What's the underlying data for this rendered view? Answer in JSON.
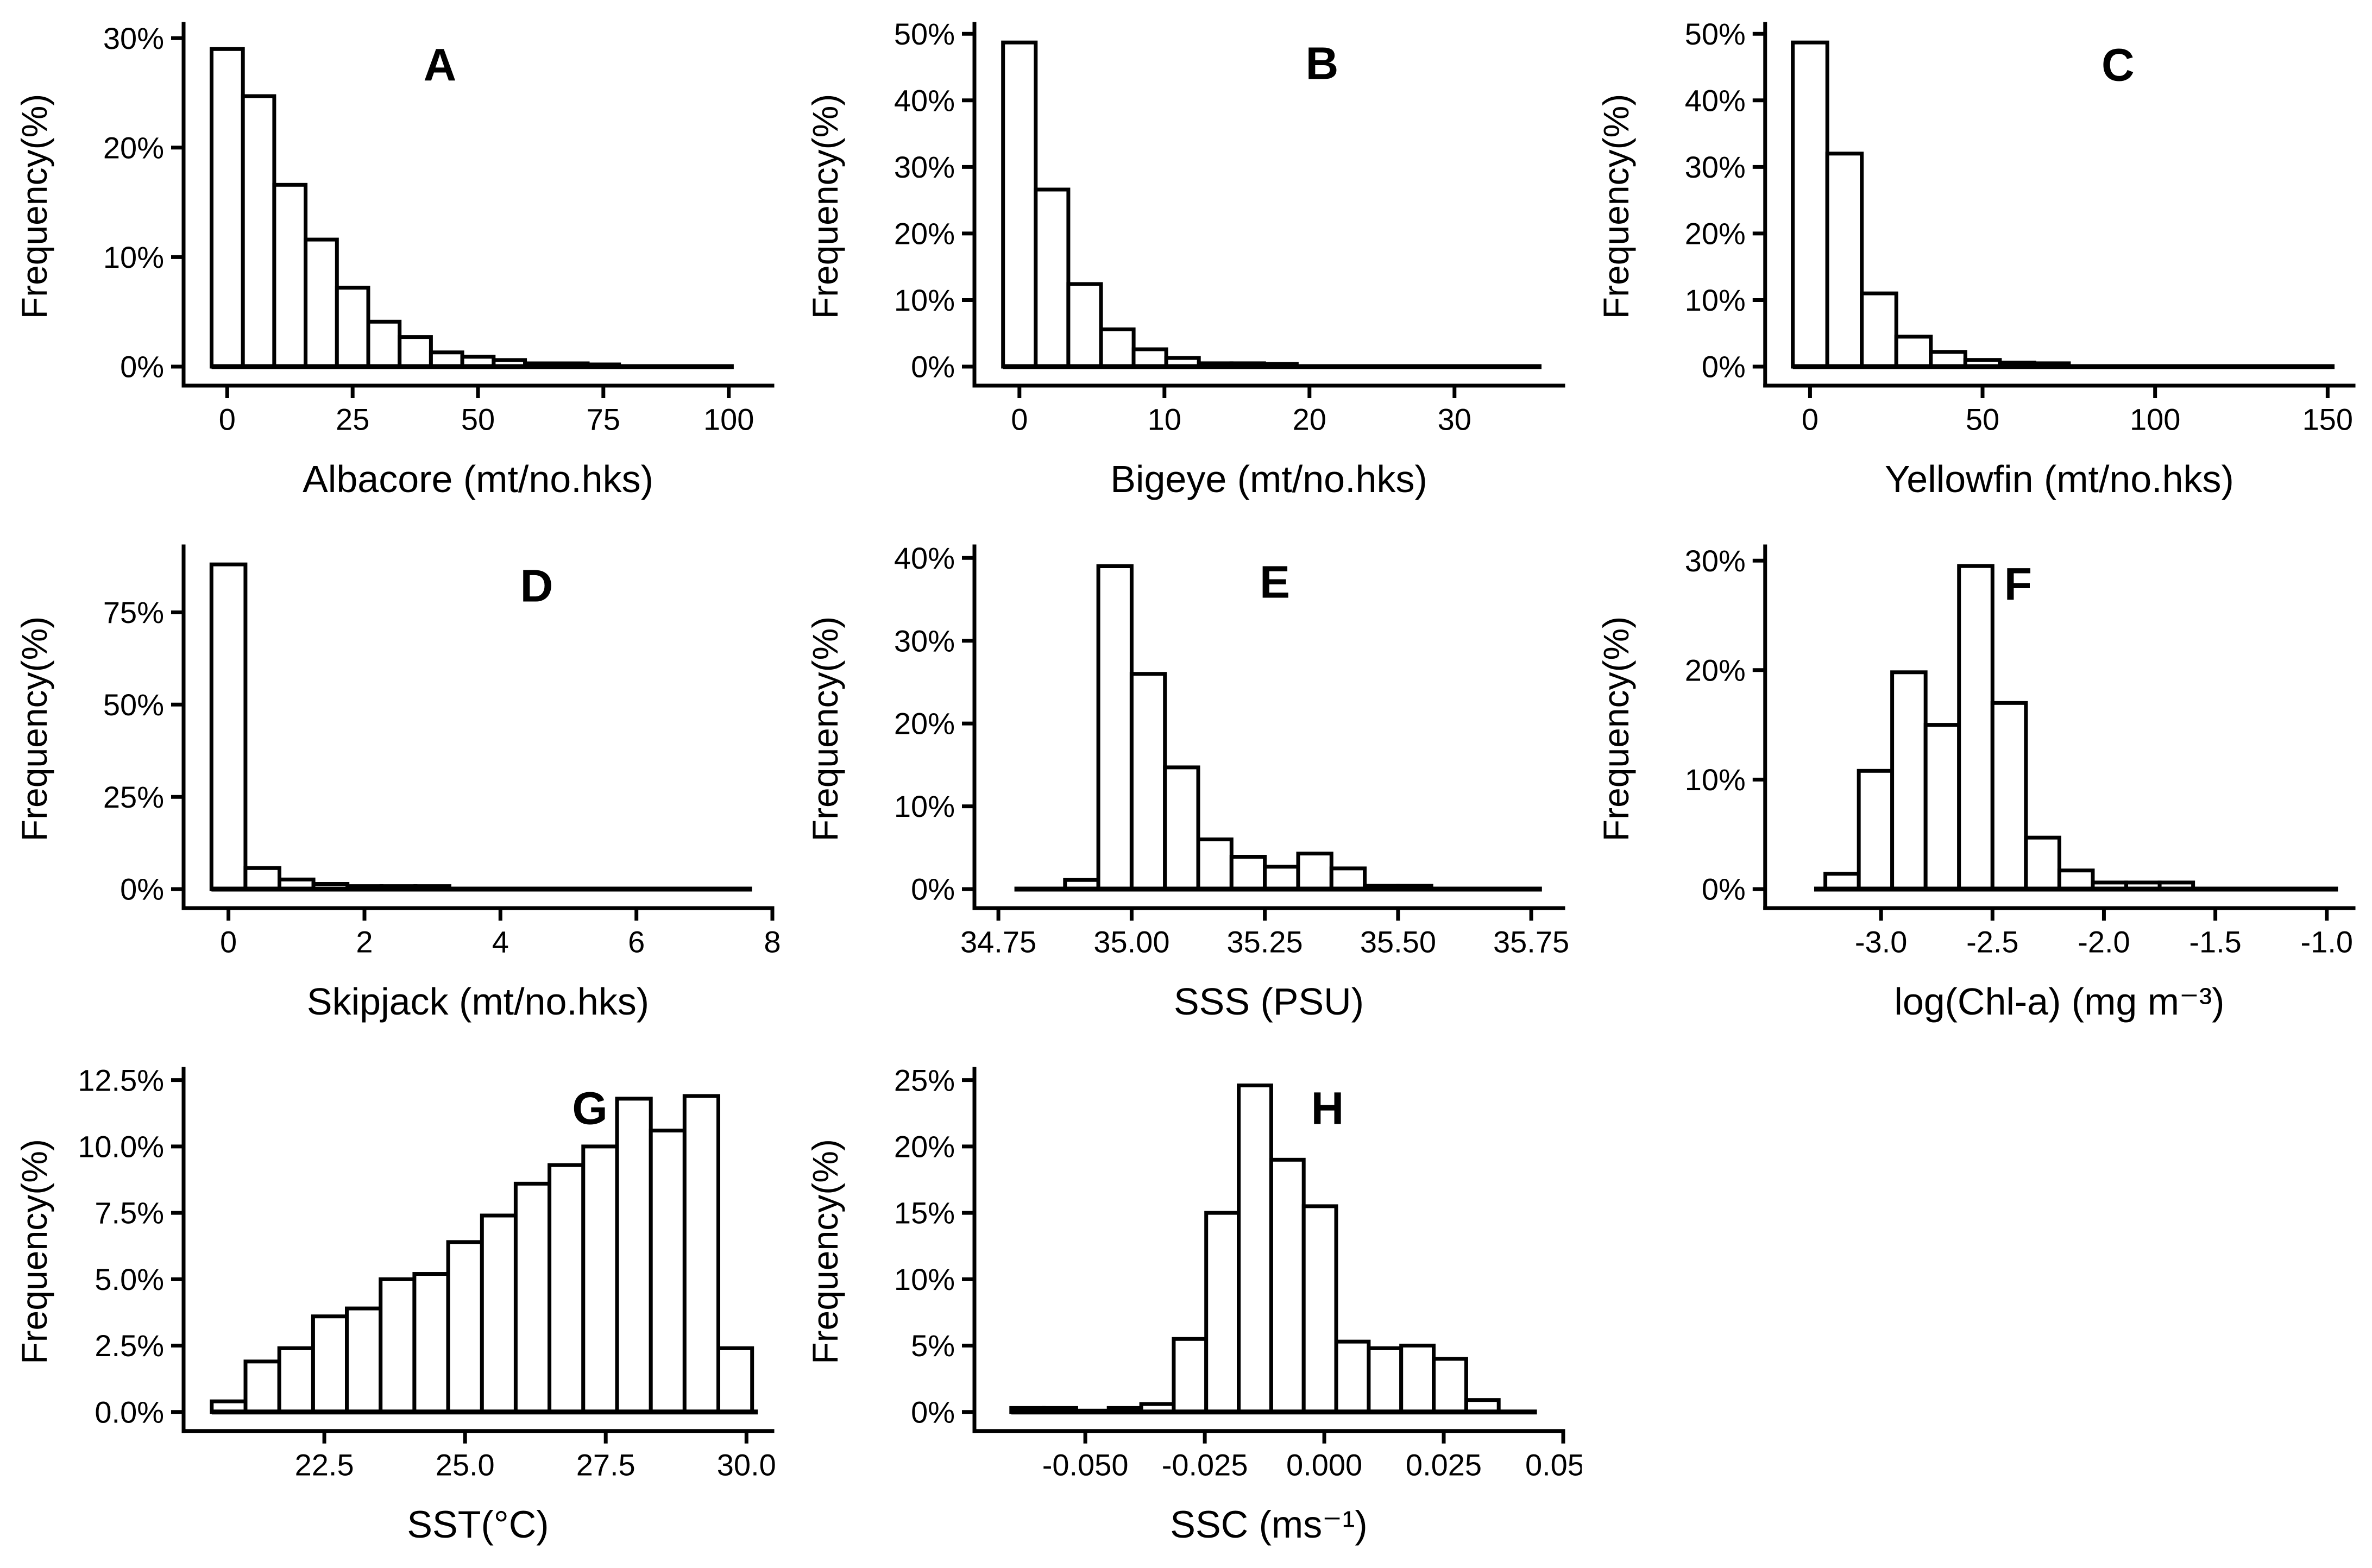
{
  "figure": {
    "background": "#ffffff",
    "ink": "#000000",
    "grid": "3x3, 8 histogram panels (A-H), last cell empty",
    "ylabel_shared": "Frequency(%)"
  },
  "chart_data": [
    {
      "type": "bar",
      "variant": "histogram",
      "id": "A",
      "letter": "A",
      "letter_fx": 0.435,
      "letter_fy": 0.11,
      "title": "",
      "ylabel": "Frequency(%)",
      "xlabel": "Albacore (mt/no.hks)",
      "xlim": [
        -8.7,
        108.7
      ],
      "ylim": [
        0,
        31
      ],
      "x_ticks": [
        0,
        25,
        50,
        75,
        100
      ],
      "x_tick_labels": [
        "0",
        "25",
        "50",
        "75",
        "100"
      ],
      "y_ticks": [
        0,
        10,
        20,
        30
      ],
      "y_tick_labels": [
        "0%",
        "10%",
        "20%",
        "30%"
      ],
      "bin_start": -3.125,
      "bin_width": 6.25,
      "values": [
        29.0,
        24.7,
        16.6,
        11.6,
        7.2,
        4.1,
        2.7,
        1.3,
        0.9,
        0.6,
        0.3,
        0.3,
        0.2
      ],
      "baseline": [
        -3.125,
        101
      ]
    },
    {
      "type": "bar",
      "variant": "histogram",
      "id": "B",
      "letter": "B",
      "letter_fx": 0.59,
      "letter_fy": 0.105,
      "title": "",
      "ylabel": "Frequency(%)",
      "xlabel": "Bigeye (mt/no.hks)",
      "xlim": [
        -3.1,
        37.5
      ],
      "ylim": [
        0,
        51
      ],
      "x_ticks": [
        0,
        10,
        20,
        30
      ],
      "x_tick_labels": [
        "0",
        "10",
        "20",
        "30"
      ],
      "y_ticks": [
        0,
        10,
        20,
        30,
        40,
        50
      ],
      "y_tick_labels": [
        "0%",
        "10%",
        "20%",
        "30%",
        "40%",
        "50%"
      ],
      "bin_start": -1.125,
      "bin_width": 2.25,
      "values": [
        48.7,
        26.6,
        12.4,
        5.6,
        2.6,
        1.3,
        0.5,
        0.5,
        0.4
      ],
      "baseline": [
        -1.125,
        36
      ]
    },
    {
      "type": "bar",
      "variant": "histogram",
      "id": "C",
      "letter": "C",
      "letter_fx": 0.6,
      "letter_fy": 0.11,
      "title": "",
      "ylabel": "Frequency(%)",
      "xlabel": "Yellowfin (mt/no.hks)",
      "xlim": [
        -13,
        157.5
      ],
      "ylim": [
        0,
        51
      ],
      "x_ticks": [
        0,
        50,
        100,
        150
      ],
      "x_tick_labels": [
        "0",
        "50",
        "100",
        "150"
      ],
      "y_ticks": [
        0,
        10,
        20,
        30,
        40,
        50
      ],
      "y_tick_labels": [
        "0%",
        "10%",
        "20%",
        "30%",
        "40%",
        "50%"
      ],
      "bin_start": -5,
      "bin_width": 10,
      "values": [
        48.7,
        32.0,
        11.0,
        4.5,
        2.2,
        1.0,
        0.6,
        0.5
      ],
      "baseline": [
        -5,
        152
      ]
    },
    {
      "type": "bar",
      "variant": "histogram",
      "id": "D",
      "letter": "D",
      "letter_fx": 0.6,
      "letter_fy": 0.105,
      "title": "",
      "ylabel": "Frequency(%)",
      "xlabel": "Skipjack (mt/no.hks)",
      "xlim": [
        -0.66,
        8.0
      ],
      "ylim": [
        0,
        92
      ],
      "x_ticks": [
        0,
        2,
        4,
        6,
        8
      ],
      "x_tick_labels": [
        "0",
        "2",
        "4",
        "6",
        "8"
      ],
      "y_ticks": [
        0,
        25,
        50,
        75
      ],
      "y_tick_labels": [
        "0%",
        "25%",
        "50%",
        "75%"
      ],
      "bin_start": -0.25,
      "bin_width": 0.5,
      "values": [
        88.0,
        5.7,
        2.6,
        1.4,
        0.8,
        0.8,
        0.8
      ],
      "baseline": [
        -0.25,
        7.7
      ]
    },
    {
      "type": "bar",
      "variant": "histogram",
      "id": "E",
      "letter": "E",
      "letter_fx": 0.51,
      "letter_fy": 0.095,
      "title": "",
      "ylabel": "Frequency(%)",
      "xlabel": "SSS (PSU)",
      "xlim": [
        34.705,
        35.81
      ],
      "ylim": [
        0,
        41
      ],
      "x_ticks": [
        34.75,
        35.0,
        35.25,
        35.5,
        35.75
      ],
      "x_tick_labels": [
        "34.75",
        "35.00",
        "35.25",
        "35.50",
        "35.75"
      ],
      "y_ticks": [
        0,
        10,
        20,
        30,
        40
      ],
      "y_tick_labels": [
        "0%",
        "10%",
        "20%",
        "30%",
        "40%"
      ],
      "bin_start": 34.875,
      "bin_width": 0.0625,
      "values": [
        1.1,
        39.0,
        26.0,
        14.7,
        6.0,
        3.9,
        2.7,
        4.3,
        2.5,
        0.4,
        0.4
      ],
      "baseline": [
        34.78,
        35.77
      ]
    },
    {
      "type": "bar",
      "variant": "histogram",
      "id": "F",
      "letter": "F",
      "letter_fx": 0.43,
      "letter_fy": 0.1,
      "title": "",
      "ylabel": "Frequency(%)",
      "xlabel": "log(Chl-a) (mg m⁻³)",
      "xlim": [
        -3.52,
        -0.88
      ],
      "ylim": [
        0,
        31
      ],
      "x_ticks": [
        -3.0,
        -2.5,
        -2.0,
        -1.5,
        -1.0
      ],
      "x_tick_labels": [
        "-3.0",
        "-2.5",
        "-2.0",
        "-1.5",
        "-1.0"
      ],
      "y_ticks": [
        0,
        10,
        20,
        30
      ],
      "y_tick_labels": [
        "0%",
        "10%",
        "20%",
        "30%"
      ],
      "bin_start": -3.25,
      "bin_width": 0.15,
      "values": [
        1.4,
        10.8,
        19.8,
        15.0,
        29.5,
        17.0,
        4.7,
        1.7,
        0.6,
        0.6,
        0.6
      ],
      "baseline": [
        -3.3,
        -0.95
      ]
    },
    {
      "type": "bar",
      "variant": "histogram",
      "id": "G",
      "letter": "G",
      "letter_fx": 0.69,
      "letter_fy": 0.105,
      "title": "",
      "ylabel": "Frequency(%)",
      "xlabel": "SST(°C)",
      "xlim": [
        20.0,
        30.46
      ],
      "ylim": [
        0,
        12.8
      ],
      "x_ticks": [
        22.5,
        25.0,
        27.5,
        30.0
      ],
      "x_tick_labels": [
        "22.5",
        "25.0",
        "27.5",
        "30.0"
      ],
      "y_ticks": [
        0,
        2.5,
        5,
        7.5,
        10,
        12.5
      ],
      "y_tick_labels": [
        "0.0%",
        "2.5%",
        "5.0%",
        "7.5%",
        "10.0%",
        "12.5%"
      ],
      "bin_start": 20.5,
      "bin_width": 0.6,
      "values": [
        0.4,
        1.9,
        2.4,
        3.6,
        3.9,
        5.0,
        5.2,
        6.4,
        7.4,
        8.6,
        9.3,
        10.0,
        11.8,
        10.6,
        11.9,
        2.4
      ],
      "baseline": [
        20.5,
        30.2
      ]
    },
    {
      "type": "bar",
      "variant": "histogram",
      "id": "H",
      "letter": "H",
      "letter_fx": 0.6,
      "letter_fy": 0.105,
      "title": "",
      "ylabel": "Frequency(%)",
      "xlabel": "SSC (ms⁻¹)",
      "xlim": [
        -0.0732,
        0.05
      ],
      "ylim": [
        0,
        25.6
      ],
      "x_ticks": [
        -0.05,
        -0.025,
        0,
        0.025,
        0.05
      ],
      "x_tick_labels": [
        "-0.050",
        "-0.025",
        "0.000",
        "0.025",
        "0.050"
      ],
      "y_ticks": [
        0,
        5,
        10,
        15,
        20,
        25
      ],
      "y_tick_labels": [
        "0%",
        "5%",
        "10%",
        "15%",
        "20%",
        "25%"
      ],
      "bin_start": -0.0655,
      "bin_width": 0.0068,
      "values": [
        0.3,
        0.3,
        0.1,
        0.3,
        0.6,
        5.5,
        15.0,
        24.6,
        19.0,
        15.5,
        5.3,
        4.8,
        5.0,
        4.0,
        0.9
      ],
      "baseline": [
        -0.0655,
        0.0445
      ]
    }
  ]
}
